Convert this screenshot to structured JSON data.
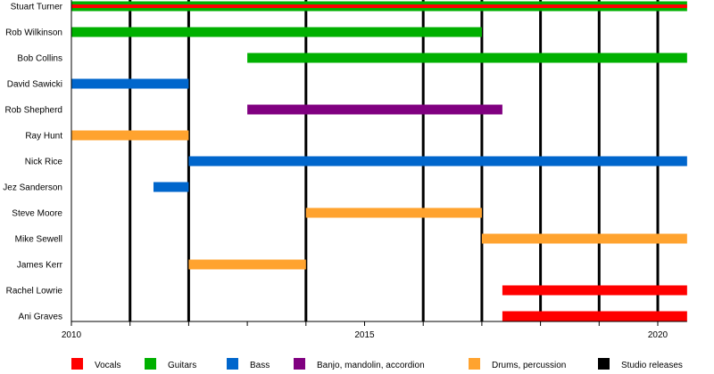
{
  "chart_data": {
    "type": "timeline",
    "xlim": [
      2010,
      2020.5
    ],
    "x_tick_labels": [
      "2010",
      "2015",
      "2020"
    ],
    "studio_releases": [
      2011,
      2012,
      2014,
      2016,
      2017,
      2018,
      2019,
      2020
    ],
    "legend": [
      {
        "key": "vocals",
        "label": "Vocals",
        "color": "#ff0000"
      },
      {
        "key": "guitars",
        "label": "Guitars",
        "color": "#00b000"
      },
      {
        "key": "bass",
        "label": "Bass",
        "color": "#0066cc"
      },
      {
        "key": "banjo",
        "label": "Banjo, mandolin, accordion",
        "color": "#800080"
      },
      {
        "key": "drums",
        "label": "Drums, percussion",
        "color": "#ffa32f"
      },
      {
        "key": "releases",
        "label": "Studio releases",
        "color": "#000000"
      }
    ],
    "legend_position": "bottom",
    "members": [
      {
        "name": "Stuart Turner",
        "bars": [
          {
            "role": "guitars",
            "start": 2010,
            "end": 2020.5
          },
          {
            "role": "vocals",
            "start": 2010,
            "end": 2020.5,
            "thin": true
          }
        ]
      },
      {
        "name": "Rob Wilkinson",
        "bars": [
          {
            "role": "guitars",
            "start": 2010,
            "end": 2017
          }
        ]
      },
      {
        "name": "Bob Collins",
        "bars": [
          {
            "role": "guitars",
            "start": 2013,
            "end": 2020.5
          }
        ]
      },
      {
        "name": "David Sawicki",
        "bars": [
          {
            "role": "bass",
            "start": 2010,
            "end": 2012
          }
        ]
      },
      {
        "name": "Rob Shepherd",
        "bars": [
          {
            "role": "banjo",
            "start": 2013,
            "end": 2017.35
          }
        ]
      },
      {
        "name": "Ray Hunt",
        "bars": [
          {
            "role": "drums",
            "start": 2010,
            "end": 2012
          }
        ]
      },
      {
        "name": "Nick Rice",
        "bars": [
          {
            "role": "bass",
            "start": 2012,
            "end": 2020.5
          }
        ]
      },
      {
        "name": "Jez Sanderson",
        "bars": [
          {
            "role": "bass",
            "start": 2011.4,
            "end": 2012
          }
        ]
      },
      {
        "name": "Steve Moore",
        "bars": [
          {
            "role": "drums",
            "start": 2014,
            "end": 2017
          }
        ]
      },
      {
        "name": "Mike Sewell",
        "bars": [
          {
            "role": "drums",
            "start": 2017,
            "end": 2020.5
          }
        ]
      },
      {
        "name": "James Kerr",
        "bars": [
          {
            "role": "drums",
            "start": 2012,
            "end": 2014
          }
        ]
      },
      {
        "name": "Rachel Lowrie",
        "bars": [
          {
            "role": "vocals",
            "start": 2017.35,
            "end": 2020.5
          }
        ]
      },
      {
        "name": "Ani Graves",
        "bars": [
          {
            "role": "vocals",
            "start": 2017.35,
            "end": 2020.5
          }
        ]
      }
    ]
  }
}
